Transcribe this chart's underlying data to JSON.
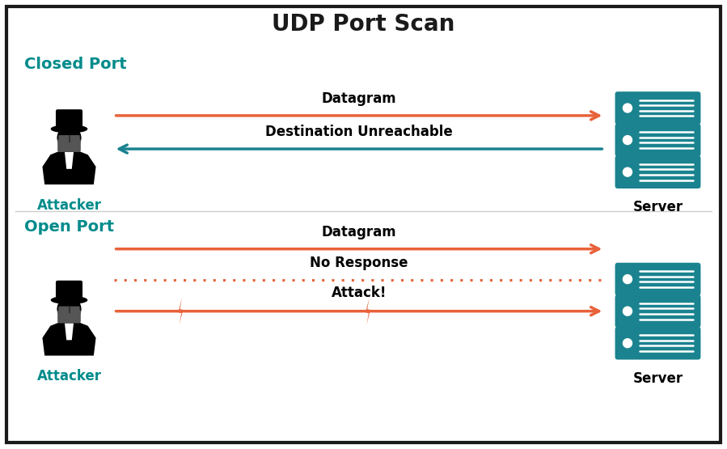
{
  "title": "UDP Port Scan",
  "title_fontsize": 20,
  "title_color": "#1a1a1a",
  "title_fontweight": "bold",
  "background_color": "#ffffff",
  "border_color": "#1a1a1a",
  "section_label_color": "#008B8B",
  "section_label_fontsize": 14,
  "section_label_fontweight": "bold",
  "closed_port_label": "Closed Port",
  "open_port_label": "Open Port",
  "teal_color": "#1a838f",
  "orange_color": "#e8623a",
  "arrow_lw": 2.5,
  "attacker_label": "Attacker",
  "server_label": "Server",
  "label_fontsize": 12,
  "label_fontweight": "bold",
  "datagram_label": "Datagram",
  "dest_unreachable_label": "Destination Unreachable",
  "no_response_label": "No Response",
  "attack_label": "Attack!",
  "arrow_label_fontsize": 12,
  "arrow_label_fontweight": "bold",
  "figwidth": 8.99,
  "figheight": 5.55,
  "dpi": 100
}
